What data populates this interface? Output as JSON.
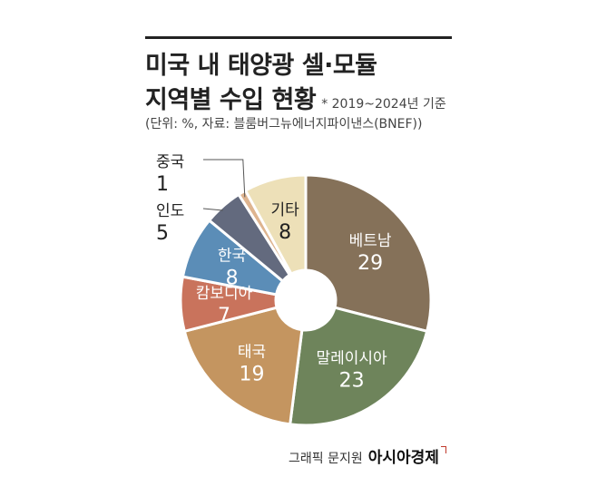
{
  "header": {
    "title_line1": "미국 내 태양광 셀·모듈",
    "title_line2": "지역별 수입 현황",
    "period_note": "* 2019~2024년 기준",
    "unit_source": "(단위: %, 자료: 블룸버그뉴에너지파이낸스(BNEF))"
  },
  "credit": {
    "graphic": "그래픽 문지원",
    "brand": "아시아경제"
  },
  "chart_data": {
    "type": "pie",
    "donut": true,
    "categories": [
      "베트남",
      "말레이시아",
      "태국",
      "캄보디아",
      "한국",
      "인도",
      "중국",
      "기타"
    ],
    "values": [
      29,
      23,
      19,
      7,
      8,
      5,
      1,
      8
    ],
    "value_labels": [
      "29",
      "23",
      "19",
      "7",
      "8",
      "5",
      "1",
      "8"
    ],
    "colors": [
      "#857159",
      "#6e845b",
      "#c49560",
      "#c9735c",
      "#5b8db7",
      "#636a7e",
      "#deb48f",
      "#ede0b8"
    ],
    "label_colors": [
      "#ffffff",
      "#ffffff",
      "#ffffff",
      "#ffffff",
      "#ffffff",
      "#222222",
      "#222222",
      "#222222"
    ],
    "outside_labels": [
      false,
      false,
      false,
      false,
      false,
      true,
      true,
      false
    ]
  }
}
